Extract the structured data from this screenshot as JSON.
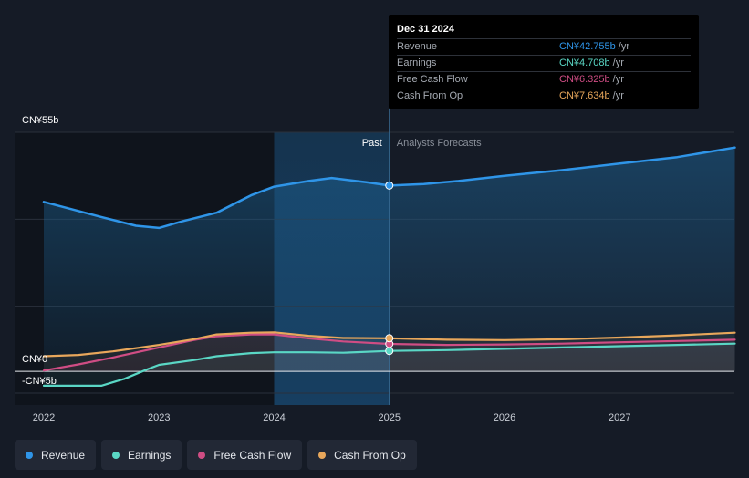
{
  "chart_data": {
    "type": "line",
    "y_ticks": [
      {
        "value": 55,
        "label": "CN¥55b"
      },
      {
        "value": 0,
        "label": "CN¥0"
      },
      {
        "value": -5,
        "label": "-CN¥5b"
      }
    ],
    "ylim": [
      -5,
      55
    ],
    "xlim": [
      2022.0,
      2028.0
    ],
    "x_ticks": [
      {
        "value": 2022,
        "label": "2022"
      },
      {
        "value": 2023,
        "label": "2023"
      },
      {
        "value": 2024,
        "label": "2024"
      },
      {
        "value": 2025,
        "label": "2025"
      },
      {
        "value": 2026,
        "label": "2026"
      },
      {
        "value": 2027,
        "label": "2027"
      }
    ],
    "divider_x": 2025.0,
    "highlight_start_x": 2024.0,
    "past_label": "Past",
    "forecast_label": "Analysts Forecasts",
    "series": [
      {
        "name": "Revenue",
        "color": "#2f95e8",
        "points": [
          [
            2022.0,
            39.0
          ],
          [
            2022.5,
            35.5
          ],
          [
            2022.8,
            33.5
          ],
          [
            2023.0,
            33.0
          ],
          [
            2023.2,
            34.5
          ],
          [
            2023.5,
            36.5
          ],
          [
            2023.8,
            40.5
          ],
          [
            2024.0,
            42.5
          ],
          [
            2024.3,
            43.8
          ],
          [
            2024.5,
            44.5
          ],
          [
            2024.8,
            43.5
          ],
          [
            2025.0,
            42.755
          ],
          [
            2025.3,
            43.1
          ],
          [
            2025.6,
            43.8
          ],
          [
            2026.0,
            45.0
          ],
          [
            2026.5,
            46.3
          ],
          [
            2027.0,
            47.8
          ],
          [
            2027.5,
            49.3
          ],
          [
            2028.0,
            51.5
          ]
        ]
      },
      {
        "name": "Earnings",
        "color": "#5ad7c5",
        "points": [
          [
            2022.0,
            -3.3
          ],
          [
            2022.3,
            -3.3
          ],
          [
            2022.5,
            -3.3
          ],
          [
            2022.7,
            -1.7
          ],
          [
            2022.9,
            0.5
          ],
          [
            2023.0,
            1.5
          ],
          [
            2023.3,
            2.6
          ],
          [
            2023.5,
            3.5
          ],
          [
            2023.8,
            4.2
          ],
          [
            2024.0,
            4.4
          ],
          [
            2024.3,
            4.4
          ],
          [
            2024.6,
            4.3
          ],
          [
            2025.0,
            4.708
          ],
          [
            2025.5,
            4.9
          ],
          [
            2026.0,
            5.2
          ],
          [
            2026.5,
            5.5
          ],
          [
            2027.0,
            5.8
          ],
          [
            2027.5,
            6.1
          ],
          [
            2028.0,
            6.4
          ]
        ]
      },
      {
        "name": "Free Cash Flow",
        "color": "#cf4d84",
        "points": [
          [
            2022.0,
            0.2
          ],
          [
            2022.3,
            1.6
          ],
          [
            2022.6,
            3.2
          ],
          [
            2023.0,
            5.5
          ],
          [
            2023.3,
            7.2
          ],
          [
            2023.5,
            8.1
          ],
          [
            2023.8,
            8.5
          ],
          [
            2024.0,
            8.5
          ],
          [
            2024.3,
            7.6
          ],
          [
            2024.6,
            6.9
          ],
          [
            2025.0,
            6.325
          ],
          [
            2025.5,
            6.1
          ],
          [
            2026.0,
            6.2
          ],
          [
            2026.5,
            6.4
          ],
          [
            2027.0,
            6.7
          ],
          [
            2027.5,
            7.0
          ],
          [
            2028.0,
            7.3
          ]
        ]
      },
      {
        "name": "Cash From Op",
        "color": "#e8a75b",
        "points": [
          [
            2022.0,
            3.5
          ],
          [
            2022.3,
            3.8
          ],
          [
            2022.6,
            4.6
          ],
          [
            2023.0,
            6.1
          ],
          [
            2023.3,
            7.4
          ],
          [
            2023.5,
            8.5
          ],
          [
            2023.8,
            8.9
          ],
          [
            2024.0,
            9.0
          ],
          [
            2024.3,
            8.2
          ],
          [
            2024.6,
            7.7
          ],
          [
            2025.0,
            7.634
          ],
          [
            2025.5,
            7.3
          ],
          [
            2026.0,
            7.2
          ],
          [
            2026.5,
            7.4
          ],
          [
            2027.0,
            7.8
          ],
          [
            2027.5,
            8.3
          ],
          [
            2028.0,
            8.9
          ]
        ]
      }
    ]
  },
  "tooltip": {
    "date": "Dec 31 2024",
    "unit": "/yr",
    "rows": [
      {
        "label": "Revenue",
        "value": "CN¥42.755b",
        "color": "#2f95e8"
      },
      {
        "label": "Earnings",
        "value": "CN¥4.708b",
        "color": "#5ad7c5"
      },
      {
        "label": "Free Cash Flow",
        "value": "CN¥6.325b",
        "color": "#cf4d84"
      },
      {
        "label": "Cash From Op",
        "value": "CN¥7.634b",
        "color": "#e8a75b"
      }
    ]
  },
  "legend": [
    {
      "label": "Revenue",
      "color": "#2f95e8"
    },
    {
      "label": "Earnings",
      "color": "#5ad7c5"
    },
    {
      "label": "Free Cash Flow",
      "color": "#cf4d84"
    },
    {
      "label": "Cash From Op",
      "color": "#e8a75b"
    }
  ]
}
